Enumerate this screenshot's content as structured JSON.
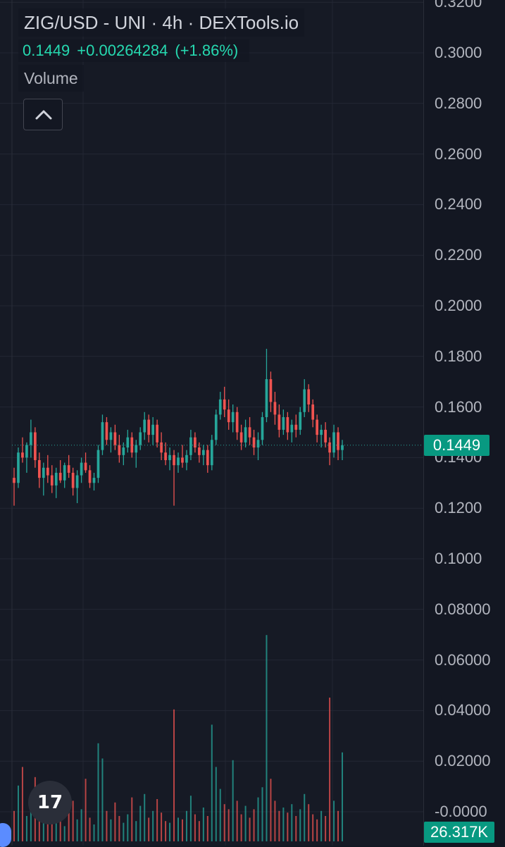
{
  "header": {
    "title": "ZIG/USD - UNI · 4h · DEXTools.io",
    "last_price": "0.1449",
    "change": "+0.00264284",
    "change_pct": "(+1.86%)",
    "volume_label": "Volume"
  },
  "colors": {
    "up": "#26a69a",
    "down": "#ef5350",
    "quote_text": "#26d9b0",
    "badge": "#089981"
  },
  "icons": {
    "collapse": "chevron-up-icon",
    "logo": "tradingview-logo-icon"
  },
  "price_axis": {
    "ticks": [
      "0.3200",
      "0.3000",
      "0.2800",
      "0.2600",
      "0.2400",
      "0.2200",
      "0.2000",
      "0.1800",
      "0.1600",
      "0.1400",
      "0.1200",
      "0.1000",
      "0.08000",
      "0.06000",
      "0.04000",
      "0.02000",
      "-0.0000"
    ],
    "current_price_label": "0.1449",
    "volume_label": "26.317K"
  },
  "chart_data": {
    "type": "candlestick",
    "interval": "4h",
    "ylim": [
      0.118,
      0.184
    ],
    "last_price": 0.1449,
    "grid": true,
    "candles": [
      [
        0.132,
        0.136,
        0.121,
        0.13
      ],
      [
        0.13,
        0.144,
        0.128,
        0.142
      ],
      [
        0.142,
        0.148,
        0.138,
        0.14
      ],
      [
        0.14,
        0.146,
        0.134,
        0.145
      ],
      [
        0.145,
        0.155,
        0.14,
        0.15
      ],
      [
        0.15,
        0.152,
        0.136,
        0.139
      ],
      [
        0.139,
        0.142,
        0.128,
        0.132
      ],
      [
        0.132,
        0.138,
        0.125,
        0.136
      ],
      [
        0.136,
        0.141,
        0.13,
        0.133
      ],
      [
        0.133,
        0.137,
        0.126,
        0.129
      ],
      [
        0.129,
        0.136,
        0.124,
        0.134
      ],
      [
        0.134,
        0.139,
        0.13,
        0.131
      ],
      [
        0.131,
        0.138,
        0.128,
        0.137
      ],
      [
        0.137,
        0.141,
        0.132,
        0.134
      ],
      [
        0.134,
        0.136,
        0.125,
        0.128
      ],
      [
        0.128,
        0.135,
        0.122,
        0.133
      ],
      [
        0.133,
        0.14,
        0.13,
        0.138
      ],
      [
        0.138,
        0.142,
        0.134,
        0.135
      ],
      [
        0.135,
        0.137,
        0.128,
        0.13
      ],
      [
        0.13,
        0.134,
        0.127,
        0.132
      ],
      [
        0.132,
        0.145,
        0.13,
        0.143
      ],
      [
        0.143,
        0.157,
        0.141,
        0.154
      ],
      [
        0.154,
        0.156,
        0.145,
        0.147
      ],
      [
        0.147,
        0.152,
        0.142,
        0.15
      ],
      [
        0.15,
        0.153,
        0.143,
        0.145
      ],
      [
        0.145,
        0.149,
        0.138,
        0.141
      ],
      [
        0.141,
        0.146,
        0.137,
        0.144
      ],
      [
        0.144,
        0.151,
        0.142,
        0.148
      ],
      [
        0.148,
        0.15,
        0.14,
        0.142
      ],
      [
        0.142,
        0.147,
        0.136,
        0.145
      ],
      [
        0.145,
        0.152,
        0.143,
        0.15
      ],
      [
        0.15,
        0.158,
        0.147,
        0.155
      ],
      [
        0.155,
        0.157,
        0.146,
        0.149
      ],
      [
        0.149,
        0.156,
        0.145,
        0.153
      ],
      [
        0.153,
        0.155,
        0.144,
        0.146
      ],
      [
        0.146,
        0.15,
        0.139,
        0.142
      ],
      [
        0.142,
        0.146,
        0.137,
        0.139
      ],
      [
        0.139,
        0.144,
        0.135,
        0.141
      ],
      [
        0.141,
        0.143,
        0.121,
        0.137
      ],
      [
        0.137,
        0.142,
        0.134,
        0.14
      ],
      [
        0.14,
        0.145,
        0.136,
        0.138
      ],
      [
        0.138,
        0.143,
        0.135,
        0.141
      ],
      [
        0.141,
        0.151,
        0.139,
        0.148
      ],
      [
        0.148,
        0.15,
        0.142,
        0.144
      ],
      [
        0.144,
        0.146,
        0.138,
        0.141
      ],
      [
        0.141,
        0.145,
        0.137,
        0.143
      ],
      [
        0.143,
        0.145,
        0.134,
        0.137
      ],
      [
        0.137,
        0.149,
        0.135,
        0.147
      ],
      [
        0.147,
        0.159,
        0.145,
        0.157
      ],
      [
        0.157,
        0.166,
        0.155,
        0.163
      ],
      [
        0.163,
        0.168,
        0.156,
        0.159
      ],
      [
        0.159,
        0.163,
        0.151,
        0.154
      ],
      [
        0.154,
        0.161,
        0.15,
        0.158
      ],
      [
        0.158,
        0.16,
        0.147,
        0.15
      ],
      [
        0.15,
        0.153,
        0.143,
        0.146
      ],
      [
        0.146,
        0.155,
        0.144,
        0.152
      ],
      [
        0.152,
        0.156,
        0.145,
        0.148
      ],
      [
        0.148,
        0.151,
        0.141,
        0.144
      ],
      [
        0.144,
        0.15,
        0.139,
        0.147
      ],
      [
        0.147,
        0.158,
        0.145,
        0.156
      ],
      [
        0.156,
        0.183,
        0.154,
        0.171
      ],
      [
        0.171,
        0.174,
        0.158,
        0.162
      ],
      [
        0.162,
        0.166,
        0.153,
        0.157
      ],
      [
        0.157,
        0.161,
        0.148,
        0.151
      ],
      [
        0.151,
        0.159,
        0.149,
        0.156
      ],
      [
        0.156,
        0.158,
        0.147,
        0.15
      ],
      [
        0.15,
        0.155,
        0.146,
        0.153
      ],
      [
        0.153,
        0.157,
        0.148,
        0.151
      ],
      [
        0.151,
        0.16,
        0.149,
        0.158
      ],
      [
        0.158,
        0.171,
        0.156,
        0.167
      ],
      [
        0.167,
        0.169,
        0.158,
        0.161
      ],
      [
        0.161,
        0.163,
        0.152,
        0.155
      ],
      [
        0.155,
        0.157,
        0.146,
        0.149
      ],
      [
        0.149,
        0.153,
        0.144,
        0.151
      ],
      [
        0.151,
        0.154,
        0.144,
        0.146
      ],
      [
        0.146,
        0.148,
        0.137,
        0.142
      ],
      [
        0.142,
        0.153,
        0.14,
        0.15
      ],
      [
        0.15,
        0.152,
        0.139,
        0.143
      ],
      [
        0.143,
        0.147,
        0.139,
        0.1449
      ]
    ],
    "volumes": [
      9.0,
      16.5,
      22.0,
      7.5,
      11.0,
      19.0,
      6.0,
      8.0,
      13.5,
      5.5,
      7.0,
      10.0,
      4.5,
      8.5,
      12.0,
      6.5,
      9.5,
      18.5,
      7.0,
      5.0,
      29.0,
      24.5,
      9.0,
      6.5,
      11.5,
      7.5,
      5.5,
      8.0,
      13.0,
      6.0,
      10.5,
      14.0,
      7.0,
      9.0,
      12.5,
      8.5,
      6.0,
      5.5,
      39.0,
      7.0,
      6.5,
      9.0,
      13.5,
      8.0,
      6.0,
      10.0,
      7.5,
      34.5,
      22.0,
      15.5,
      11.0,
      9.5,
      24.0,
      12.0,
      8.0,
      10.5,
      7.0,
      9.5,
      13.0,
      16.0,
      61.0,
      18.5,
      12.0,
      9.0,
      10.0,
      8.5,
      11.0,
      7.5,
      9.5,
      14.0,
      11.0,
      8.0,
      6.5,
      9.0,
      7.5,
      42.5,
      12.0,
      9.0,
      26.3
    ],
    "price_tick_values": [
      0.32,
      0.3,
      0.28,
      0.26,
      0.24,
      0.22,
      0.2,
      0.18,
      0.16,
      0.14,
      0.12,
      0.1,
      0.08,
      0.06,
      0.04,
      0.02,
      0.0
    ],
    "volume_unit": "K"
  }
}
